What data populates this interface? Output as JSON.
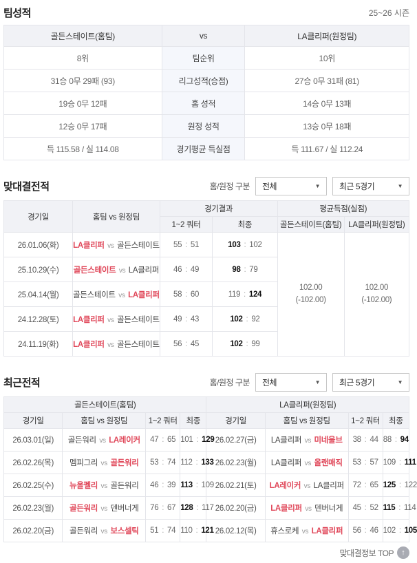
{
  "season_label": "25~26 시즌",
  "vs_label": "vs",
  "colors": {
    "accent_red": "#e0485a",
    "header_bg": "#f1f2f6",
    "center_col_bg": "#f5f7fc"
  },
  "team_stats": {
    "title": "팀성적",
    "header": {
      "home": "골든스테이트(홈팀)",
      "vs": "vs",
      "away": "LA클리퍼(원정팀)"
    },
    "rows": [
      {
        "home": "8위",
        "label": "팀순위",
        "away": "10위"
      },
      {
        "home": "31승 0무 29패 (93)",
        "label": "리그성적(승점)",
        "away": "27승 0무 31패 (81)"
      },
      {
        "home": "19승 0무 12패",
        "label": "홈 성적",
        "away": "14승 0무 13패"
      },
      {
        "home": "12승 0무 17패",
        "label": "원정 성적",
        "away": "13승 0무 18패"
      },
      {
        "home": "득 115.58 / 실 114.08",
        "label": "경기평균 득실점",
        "away": "득 111.67 / 실 112.24"
      }
    ]
  },
  "head_to_head": {
    "title": "맞대결전적",
    "filter": {
      "label": "홈/원정 구분",
      "scope": "전체",
      "range": "최근 5경기"
    },
    "columns": {
      "date": "경기일",
      "teams": "홈팀 vs 원정팀",
      "result_group": "경기결과",
      "quarter": "1~2 쿼터",
      "final": "최종",
      "avg_group": "평균득점(실점)",
      "avg_home": "골든스테이트(홈팀)",
      "avg_away": "LA클리퍼(원정팀)"
    },
    "rows": [
      {
        "date": "26.01.06(화)",
        "home": "LA클리퍼",
        "away": "골든스테이트",
        "winner": "home",
        "quarter_home": "55",
        "quarter_away": "51",
        "final_home": "103",
        "final_away": "102"
      },
      {
        "date": "25.10.29(수)",
        "home": "골든스테이트",
        "away": "LA클리퍼",
        "winner": "home",
        "quarter_home": "46",
        "quarter_away": "49",
        "final_home": "98",
        "final_away": "79"
      },
      {
        "date": "25.04.14(월)",
        "home": "골든스테이트",
        "away": "LA클리퍼",
        "winner": "away",
        "quarter_home": "58",
        "quarter_away": "60",
        "final_home": "119",
        "final_away": "124"
      },
      {
        "date": "24.12.28(토)",
        "home": "LA클리퍼",
        "away": "골든스테이트",
        "winner": "home",
        "quarter_home": "49",
        "quarter_away": "43",
        "final_home": "102",
        "final_away": "92"
      },
      {
        "date": "24.11.19(화)",
        "home": "LA클리퍼",
        "away": "골든스테이트",
        "winner": "home",
        "quarter_home": "56",
        "quarter_away": "45",
        "final_home": "102",
        "final_away": "99"
      }
    ],
    "avg_home": {
      "points": "102.00",
      "conceded": "(-102.00)"
    },
    "avg_away": {
      "points": "102.00",
      "conceded": "(-102.00)"
    }
  },
  "recent": {
    "title": "최근전적",
    "filter": {
      "label": "홈/원정 구분",
      "scope": "전체",
      "range": "최근 5경기"
    },
    "columns": {
      "date": "경기일",
      "teams": "홈팀 vs 원정팀",
      "quarter": "1~2 쿼터",
      "final": "최종"
    },
    "left": {
      "team_header": "골든스테이트(홈팀)",
      "rows": [
        {
          "date": "26.03.01(일)",
          "home": "골든워리",
          "away": "LA레이커",
          "winner": "away",
          "quarter_home": "47",
          "quarter_away": "65",
          "final_home": "101",
          "final_away": "129"
        },
        {
          "date": "26.02.26(목)",
          "home": "멤피그리",
          "away": "골든워리",
          "winner": "away",
          "quarter_home": "53",
          "quarter_away": "74",
          "final_home": "112",
          "final_away": "133"
        },
        {
          "date": "26.02.25(수)",
          "home": "뉴올펠리",
          "away": "골든워리",
          "winner": "home",
          "quarter_home": "46",
          "quarter_away": "39",
          "final_home": "113",
          "final_away": "109"
        },
        {
          "date": "26.02.23(월)",
          "home": "골든워리",
          "away": "덴버너게",
          "winner": "home",
          "quarter_home": "76",
          "quarter_away": "67",
          "final_home": "128",
          "final_away": "117"
        },
        {
          "date": "26.02.20(금)",
          "home": "골든워리",
          "away": "보스셀틱",
          "winner": "away",
          "quarter_home": "51",
          "quarter_away": "74",
          "final_home": "110",
          "final_away": "121"
        }
      ]
    },
    "right": {
      "team_header": "LA클리퍼(원정팀)",
      "rows": [
        {
          "date": "26.02.27(금)",
          "home": "LA클리퍼",
          "away": "미네울브",
          "winner": "away",
          "quarter_home": "38",
          "quarter_away": "44",
          "final_home": "88",
          "final_away": "94"
        },
        {
          "date": "26.02.23(월)",
          "home": "LA클리퍼",
          "away": "올랜매직",
          "winner": "away",
          "quarter_home": "53",
          "quarter_away": "57",
          "final_home": "109",
          "final_away": "111"
        },
        {
          "date": "26.02.21(토)",
          "home": "LA레이커",
          "away": "LA클리퍼",
          "winner": "home",
          "quarter_home": "72",
          "quarter_away": "65",
          "final_home": "125",
          "final_away": "122"
        },
        {
          "date": "26.02.20(금)",
          "home": "LA클리퍼",
          "away": "덴버너게",
          "winner": "home",
          "quarter_home": "45",
          "quarter_away": "52",
          "final_home": "115",
          "final_away": "114"
        },
        {
          "date": "26.02.12(목)",
          "home": "휴스로케",
          "away": "LA클리퍼",
          "winner": "away",
          "quarter_home": "56",
          "quarter_away": "46",
          "final_home": "102",
          "final_away": "105"
        }
      ]
    }
  },
  "footer": {
    "top_link": "맞대결정보 TOP",
    "top_icon": "up-arrow-circle"
  }
}
